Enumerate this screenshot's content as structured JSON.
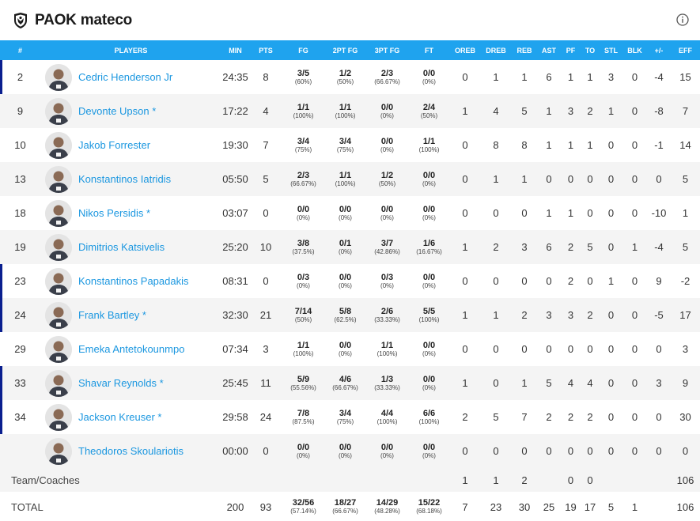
{
  "team": {
    "name": "PAOK mateco",
    "logo_icon": "paok-shield-icon"
  },
  "colors": {
    "header_bar": "#1fa3ee",
    "player_link": "#1b97e0",
    "starter_marker": "#0a1f8f"
  },
  "columns": [
    "#",
    "PLAYERS",
    "MIN",
    "PTS",
    "FG",
    "2PT FG",
    "3PT FG",
    "FT",
    "OREB",
    "DREB",
    "REB",
    "AST",
    "PF",
    "TO",
    "STL",
    "BLK",
    "+/-",
    "EFF"
  ],
  "players": [
    {
      "num": "2",
      "name": "Cedric Henderson Jr",
      "min": "24:35",
      "pts": "8",
      "fg": "3/5",
      "fg_pct": "(60%)",
      "fg2": "1/2",
      "fg2_pct": "(50%)",
      "fg3": "2/3",
      "fg3_pct": "(66.67%)",
      "ft": "0/0",
      "ft_pct": "(0%)",
      "oreb": "0",
      "dreb": "1",
      "reb": "1",
      "ast": "6",
      "pf": "1",
      "to": "1",
      "stl": "3",
      "blk": "0",
      "pm": "-4",
      "eff": "15",
      "starter": true
    },
    {
      "num": "9",
      "name": "Devonte Upson *",
      "min": "17:22",
      "pts": "4",
      "fg": "1/1",
      "fg_pct": "(100%)",
      "fg2": "1/1",
      "fg2_pct": "(100%)",
      "fg3": "0/0",
      "fg3_pct": "(0%)",
      "ft": "2/4",
      "ft_pct": "(50%)",
      "oreb": "1",
      "dreb": "4",
      "reb": "5",
      "ast": "1",
      "pf": "3",
      "to": "2",
      "stl": "1",
      "blk": "0",
      "pm": "-8",
      "eff": "7",
      "starter": false
    },
    {
      "num": "10",
      "name": "Jakob Forrester",
      "min": "19:30",
      "pts": "7",
      "fg": "3/4",
      "fg_pct": "(75%)",
      "fg2": "3/4",
      "fg2_pct": "(75%)",
      "fg3": "0/0",
      "fg3_pct": "(0%)",
      "ft": "1/1",
      "ft_pct": "(100%)",
      "oreb": "0",
      "dreb": "8",
      "reb": "8",
      "ast": "1",
      "pf": "1",
      "to": "1",
      "stl": "0",
      "blk": "0",
      "pm": "-1",
      "eff": "14",
      "starter": false
    },
    {
      "num": "13",
      "name": "Konstantinos Iatridis",
      "min": "05:50",
      "pts": "5",
      "fg": "2/3",
      "fg_pct": "(66.67%)",
      "fg2": "1/1",
      "fg2_pct": "(100%)",
      "fg3": "1/2",
      "fg3_pct": "(50%)",
      "ft": "0/0",
      "ft_pct": "(0%)",
      "oreb": "0",
      "dreb": "1",
      "reb": "1",
      "ast": "0",
      "pf": "0",
      "to": "0",
      "stl": "0",
      "blk": "0",
      "pm": "0",
      "eff": "5",
      "starter": false
    },
    {
      "num": "18",
      "name": "Nikos Persidis *",
      "min": "03:07",
      "pts": "0",
      "fg": "0/0",
      "fg_pct": "(0%)",
      "fg2": "0/0",
      "fg2_pct": "(0%)",
      "fg3": "0/0",
      "fg3_pct": "(0%)",
      "ft": "0/0",
      "ft_pct": "(0%)",
      "oreb": "0",
      "dreb": "0",
      "reb": "0",
      "ast": "1",
      "pf": "1",
      "to": "0",
      "stl": "0",
      "blk": "0",
      "pm": "-10",
      "eff": "1",
      "starter": false
    },
    {
      "num": "19",
      "name": "Dimitrios Katsivelis",
      "min": "25:20",
      "pts": "10",
      "fg": "3/8",
      "fg_pct": "(37.5%)",
      "fg2": "0/1",
      "fg2_pct": "(0%)",
      "fg3": "3/7",
      "fg3_pct": "(42.86%)",
      "ft": "1/6",
      "ft_pct": "(16.67%)",
      "oreb": "1",
      "dreb": "2",
      "reb": "3",
      "ast": "6",
      "pf": "2",
      "to": "5",
      "stl": "0",
      "blk": "1",
      "pm": "-4",
      "eff": "5",
      "starter": false
    },
    {
      "num": "23",
      "name": "Konstantinos Papadakis",
      "min": "08:31",
      "pts": "0",
      "fg": "0/3",
      "fg_pct": "(0%)",
      "fg2": "0/0",
      "fg2_pct": "(0%)",
      "fg3": "0/3",
      "fg3_pct": "(0%)",
      "ft": "0/0",
      "ft_pct": "(0%)",
      "oreb": "0",
      "dreb": "0",
      "reb": "0",
      "ast": "0",
      "pf": "2",
      "to": "0",
      "stl": "1",
      "blk": "0",
      "pm": "9",
      "eff": "-2",
      "starter": true
    },
    {
      "num": "24",
      "name": "Frank Bartley *",
      "min": "32:30",
      "pts": "21",
      "fg": "7/14",
      "fg_pct": "(50%)",
      "fg2": "5/8",
      "fg2_pct": "(62.5%)",
      "fg3": "2/6",
      "fg3_pct": "(33.33%)",
      "ft": "5/5",
      "ft_pct": "(100%)",
      "oreb": "1",
      "dreb": "1",
      "reb": "2",
      "ast": "3",
      "pf": "3",
      "to": "2",
      "stl": "0",
      "blk": "0",
      "pm": "-5",
      "eff": "17",
      "starter": true
    },
    {
      "num": "29",
      "name": "Emeka Antetokounmpo",
      "min": "07:34",
      "pts": "3",
      "fg": "1/1",
      "fg_pct": "(100%)",
      "fg2": "0/0",
      "fg2_pct": "(0%)",
      "fg3": "1/1",
      "fg3_pct": "(100%)",
      "ft": "0/0",
      "ft_pct": "(0%)",
      "oreb": "0",
      "dreb": "0",
      "reb": "0",
      "ast": "0",
      "pf": "0",
      "to": "0",
      "stl": "0",
      "blk": "0",
      "pm": "0",
      "eff": "3",
      "starter": false
    },
    {
      "num": "33",
      "name": "Shavar Reynolds *",
      "min": "25:45",
      "pts": "11",
      "fg": "5/9",
      "fg_pct": "(55.56%)",
      "fg2": "4/6",
      "fg2_pct": "(66.67%)",
      "fg3": "1/3",
      "fg3_pct": "(33.33%)",
      "ft": "0/0",
      "ft_pct": "(0%)",
      "oreb": "1",
      "dreb": "0",
      "reb": "1",
      "ast": "5",
      "pf": "4",
      "to": "4",
      "stl": "0",
      "blk": "0",
      "pm": "3",
      "eff": "9",
      "starter": true
    },
    {
      "num": "34",
      "name": "Jackson Kreuser *",
      "min": "29:58",
      "pts": "24",
      "fg": "7/8",
      "fg_pct": "(87.5%)",
      "fg2": "3/4",
      "fg2_pct": "(75%)",
      "fg3": "4/4",
      "fg3_pct": "(100%)",
      "ft": "6/6",
      "ft_pct": "(100%)",
      "oreb": "2",
      "dreb": "5",
      "reb": "7",
      "ast": "2",
      "pf": "2",
      "to": "2",
      "stl": "0",
      "blk": "0",
      "pm": "0",
      "eff": "30",
      "starter": true
    },
    {
      "num": "",
      "name": "Theodoros Skoulariotis",
      "min": "00:00",
      "pts": "0",
      "fg": "0/0",
      "fg_pct": "(0%)",
      "fg2": "0/0",
      "fg2_pct": "(0%)",
      "fg3": "0/0",
      "fg3_pct": "(0%)",
      "ft": "0/0",
      "ft_pct": "(0%)",
      "oreb": "0",
      "dreb": "0",
      "reb": "0",
      "ast": "0",
      "pf": "0",
      "to": "0",
      "stl": "0",
      "blk": "0",
      "pm": "0",
      "eff": "0",
      "starter": false
    }
  ],
  "team_coaches": {
    "label": "Team/Coaches",
    "oreb": "1",
    "dreb": "1",
    "reb": "2",
    "pf": "0",
    "to": "0",
    "eff": "106"
  },
  "total": {
    "label": "TOTAL",
    "min": "200",
    "pts": "93",
    "fg": "32/56",
    "fg_pct": "(57.14%)",
    "fg2": "18/27",
    "fg2_pct": "(66.67%)",
    "fg3": "14/29",
    "fg3_pct": "(48.28%)",
    "ft": "15/22",
    "ft_pct": "(68.18%)",
    "oreb": "7",
    "dreb": "23",
    "reb": "30",
    "ast": "25",
    "pf": "19",
    "to": "17",
    "stl": "5",
    "blk": "1",
    "eff": "106"
  }
}
